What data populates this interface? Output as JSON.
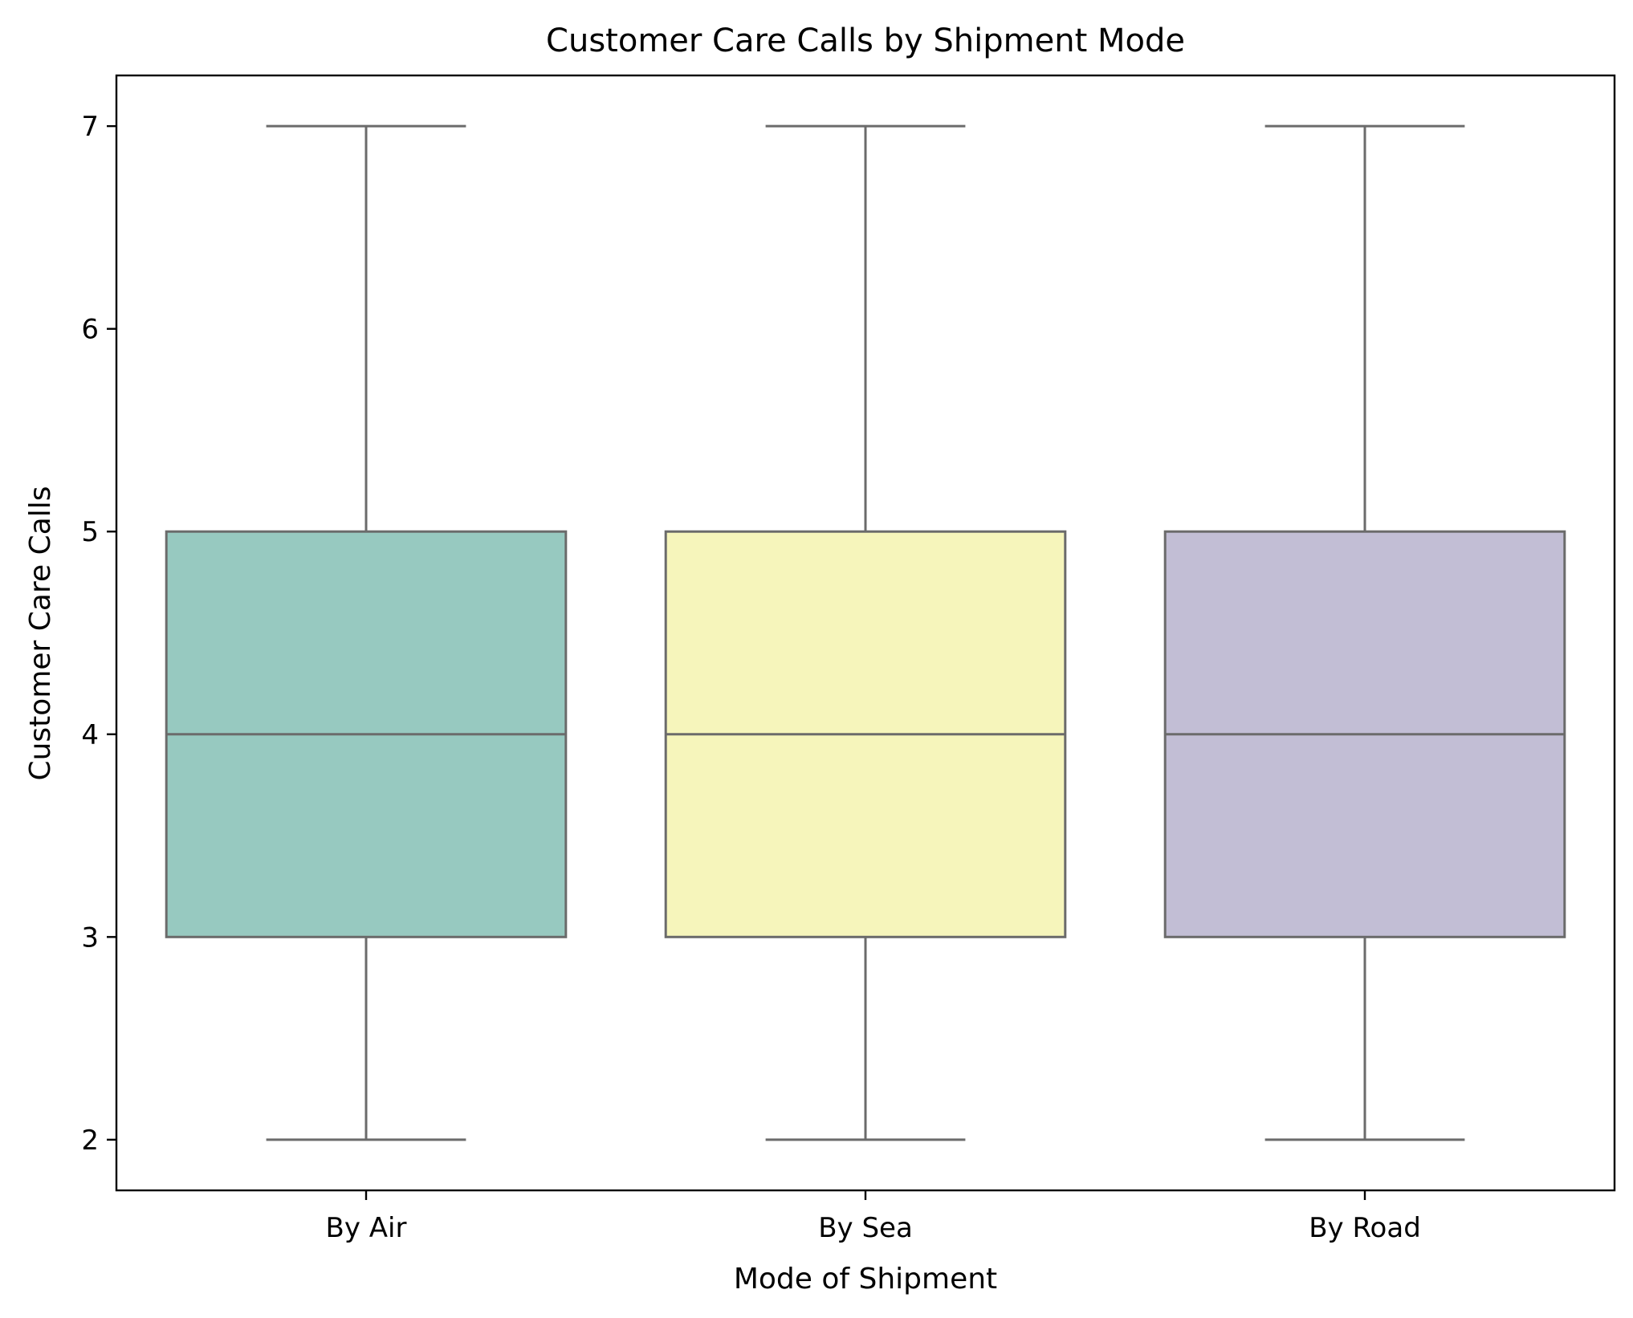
{
  "chart_data": {
    "type": "box",
    "title": "Customer Care Calls by Shipment Mode",
    "xlabel": "Mode of Shipment",
    "ylabel": "Customer Care Calls",
    "categories": [
      "By Air",
      "By Sea",
      "By Road"
    ],
    "ylim": [
      1.75,
      7.25
    ],
    "yticks": [
      "2",
      "3",
      "4",
      "5",
      "6",
      "7"
    ],
    "grid": false,
    "legend": "none",
    "boxes": [
      {
        "category": "By Air",
        "whisker_low": 2,
        "q1": 3,
        "median": 4,
        "q3": 5,
        "whisker_high": 7,
        "color": "#97c9c0"
      },
      {
        "category": "By Sea",
        "whisker_low": 2,
        "q1": 3,
        "median": 4,
        "q3": 5,
        "whisker_high": 7,
        "color": "#f6f5bb"
      },
      {
        "category": "By Road",
        "whisker_low": 2,
        "q1": 3,
        "median": 4,
        "q3": 5,
        "whisker_high": 7,
        "color": "#c2bed5"
      }
    ],
    "line_color": "#6b6b6b"
  }
}
